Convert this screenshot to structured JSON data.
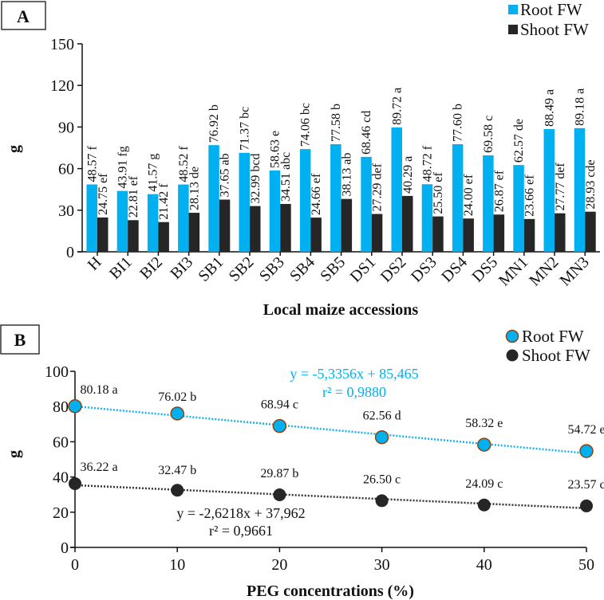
{
  "colors": {
    "root": "#00b0f0",
    "shoot": "#262626",
    "root_marker_edge": "#8b4513"
  },
  "chart_data": [
    {
      "panel": "A",
      "type": "bar",
      "title": "",
      "xlabel": "Local maize accessions",
      "ylabel": "g",
      "ylim": [
        0,
        150
      ],
      "yticks": [
        0,
        30,
        60,
        90,
        120,
        150
      ],
      "legend_position": "top-right",
      "categories": [
        "H",
        "BI1",
        "BI2",
        "BI3",
        "SB1",
        "SB2",
        "SB3",
        "SB4",
        "SB5",
        "DS1",
        "DS2",
        "DS3",
        "DS4",
        "DS5",
        "MN1",
        "MN2",
        "MN3"
      ],
      "series": [
        {
          "name": "Root FW",
          "values": [
            48.57,
            43.91,
            41.57,
            48.52,
            76.92,
            71.37,
            58.63,
            74.06,
            77.58,
            68.46,
            89.72,
            48.72,
            77.6,
            69.58,
            62.57,
            88.49,
            89.18
          ],
          "labels": [
            "48.57 f",
            "43.91 fg",
            "41.57 g",
            "48.52 f",
            "76.92 b",
            "71.37 bc",
            "58.63 e",
            "74.06 bc",
            "77.58 b",
            "68.46 cd",
            "89.72 a",
            "48.72 f",
            "77.60 b",
            "69.58 c",
            "62.57 de",
            "88.49 a",
            "89.18 a"
          ]
        },
        {
          "name": "Shoot FW",
          "values": [
            24.75,
            22.81,
            21.42,
            28.13,
            37.65,
            32.99,
            34.51,
            24.66,
            38.13,
            27.29,
            40.29,
            25.5,
            24.0,
            26.87,
            23.66,
            27.77,
            28.93
          ],
          "labels": [
            "24.75 ef",
            "22.81 ef",
            "21.42 f",
            "28.13 de",
            "37.65 ab",
            "32.99 bcd",
            "34.51 abc",
            "24.66 ef",
            "38.13 ab",
            "27.29 def",
            "40.29 a",
            "25.50 ef",
            "24.00 ef",
            "26.87 ef",
            "23.66 ef",
            "27.77 def",
            "28.93 cde"
          ]
        }
      ]
    },
    {
      "panel": "B",
      "type": "scatter",
      "title": "",
      "xlabel": "PEG concentrations (%)",
      "ylabel": "g",
      "xlim": [
        0,
        50
      ],
      "ylim": [
        0,
        100
      ],
      "xticks": [
        0,
        10,
        20,
        30,
        40,
        50
      ],
      "yticks": [
        0,
        20,
        40,
        60,
        80,
        100
      ],
      "legend_position": "top-right",
      "x": [
        0,
        10,
        20,
        30,
        40,
        50
      ],
      "series": [
        {
          "name": "Root FW",
          "values": [
            80.18,
            76.02,
            68.94,
            62.56,
            58.32,
            54.72
          ],
          "labels": [
            "80.18 a",
            "76.02 b",
            "68.94 c",
            "62.56 d",
            "58.32 e",
            "54.72 e"
          ],
          "trend": {
            "slope": -5.3356,
            "intercept": 85.465,
            "equation": "y = -5,3356x + 85,465",
            "r2": "r² = 0,9880"
          }
        },
        {
          "name": "Shoot FW",
          "values": [
            36.22,
            32.47,
            29.87,
            26.5,
            24.09,
            23.57
          ],
          "labels": [
            "36.22 a",
            "32.47 b",
            "29.87 b",
            "26.50 c",
            "24.09 c",
            "23.57 c"
          ],
          "trend": {
            "slope": -2.6218,
            "intercept": 37.962,
            "equation": "y = -2,6218x + 37,962",
            "r2": "r² = 0,9661"
          }
        }
      ]
    }
  ]
}
